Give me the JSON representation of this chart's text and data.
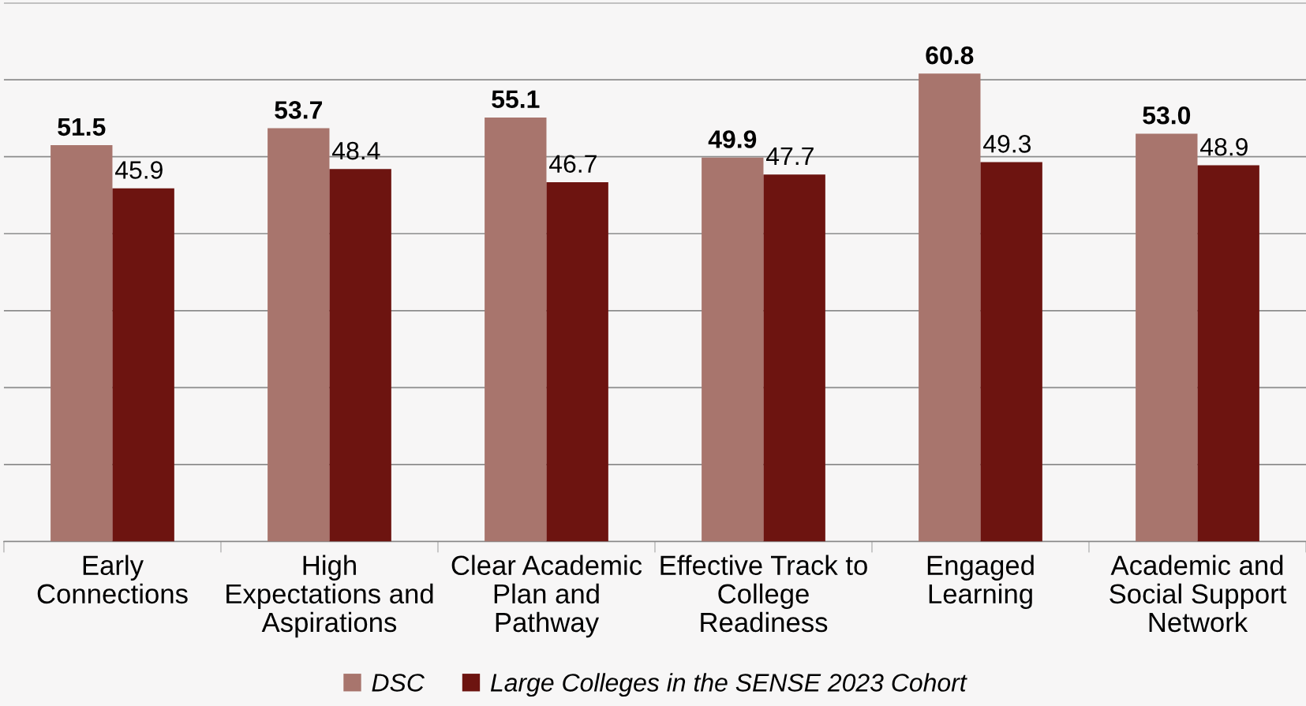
{
  "chart_data": {
    "type": "bar",
    "categories": [
      "Early Connections",
      "High Expectations and Aspirations",
      "Clear Academic Plan and Pathway",
      "Effective Track to College Readiness",
      "Engaged Learning",
      "Academic and Social Support Network"
    ],
    "series": [
      {
        "name": "DSC",
        "color": "#a8756d",
        "values": [
          51.5,
          53.7,
          55.1,
          49.9,
          60.8,
          53.0
        ],
        "value_labels": [
          "51.5",
          "53.7",
          "55.1",
          "49.9",
          "60.8",
          "53.0"
        ]
      },
      {
        "name": "Large Colleges in the SENSE 2023 Cohort",
        "color": "#6d1410",
        "values": [
          45.9,
          48.4,
          46.7,
          47.7,
          49.3,
          48.9
        ],
        "value_labels": [
          "45.9",
          "48.4",
          "46.7",
          "47.7",
          "49.3",
          "48.9"
        ]
      }
    ],
    "ylim": [
      0,
      70
    ],
    "yticks": [
      {
        "value": 0,
        "label": null
      },
      {
        "value": 10,
        "label": null
      },
      {
        "value": 20,
        "label": null
      },
      {
        "value": 30,
        "label": null
      },
      {
        "value": 40,
        "label": null
      },
      {
        "value": 50,
        "label": null
      },
      {
        "value": 60,
        "label": null
      },
      {
        "value": 70,
        "label": null
      }
    ],
    "tick_labels": "x",
    "grid": "y",
    "legend": "bottom"
  }
}
